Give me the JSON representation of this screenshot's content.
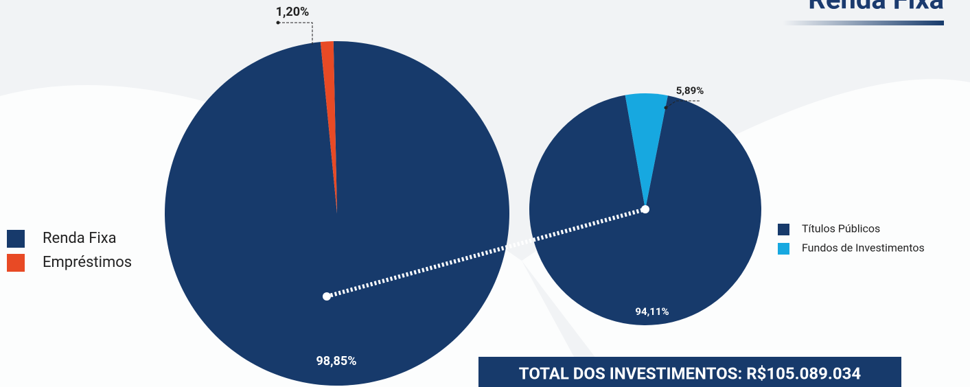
{
  "title": "Renda Fixa",
  "total": "TOTAL DOS INVESTIMENTOS: R$105.089.034",
  "chart_data": [
    {
      "type": "pie",
      "categories": [
        "Renda Fixa",
        "Empréstimos"
      ],
      "values": [
        98.85,
        1.2
      ],
      "value_labels": [
        "98,85%",
        "1,20%"
      ],
      "colors": [
        "#173a6b",
        "#e84a25"
      ]
    },
    {
      "type": "pie",
      "categories": [
        "Títulos Públicos",
        "Fundos de Investimentos"
      ],
      "values": [
        94.11,
        5.89
      ],
      "value_labels": [
        "94,11%",
        "5,89%"
      ],
      "colors": [
        "#173a6b",
        "#17a8e0"
      ]
    }
  ]
}
